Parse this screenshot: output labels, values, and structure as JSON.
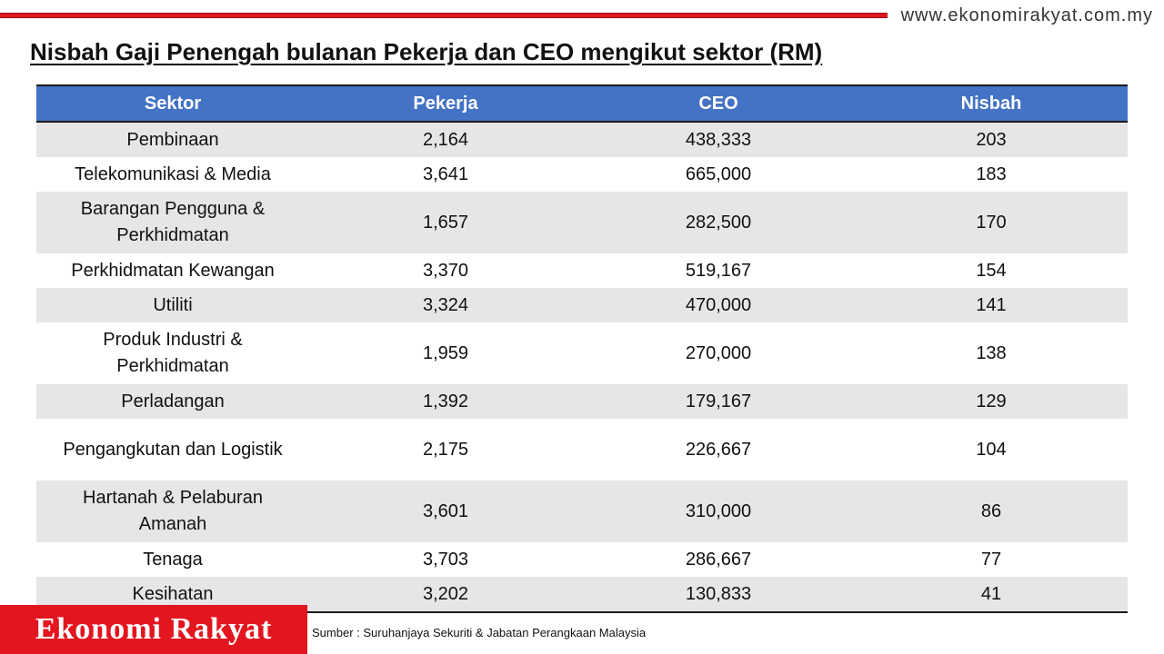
{
  "header": {
    "site_url": "www.ekonomirakyat.com.my",
    "accent_color": "#e3151f"
  },
  "title": "Nisbah Gaji Penengah bulanan Pekerja dan CEO mengikut sektor (RM)",
  "chart_data": {
    "type": "table",
    "title": "Nisbah Gaji Penengah bulanan Pekerja dan CEO mengikut sektor (RM)",
    "columns": [
      "Sektor",
      "Pekerja",
      "CEO",
      "Nisbah"
    ],
    "header_color": "#4472c4",
    "rows": [
      [
        "Pembinaan",
        "2,164",
        "438,333",
        "203"
      ],
      [
        "Telekomunikasi & Media",
        "3,641",
        "665,000",
        "183"
      ],
      [
        "Barangan Pengguna & Perkhidmatan",
        "1,657",
        "282,500",
        "170"
      ],
      [
        "Perkhidmatan Kewangan",
        "3,370",
        "519,167",
        "154"
      ],
      [
        "Utiliti",
        "3,324",
        "470,000",
        "141"
      ],
      [
        "Produk Industri & Perkhidmatan",
        "1,959",
        "270,000",
        "138"
      ],
      [
        "Perladangan",
        "1,392",
        "179,167",
        "129"
      ],
      [
        "Pengangkutan dan Logistik",
        "2,175",
        "226,667",
        "104"
      ],
      [
        "Hartanah & Pelaburan Amanah",
        "3,601",
        "310,000",
        "86"
      ],
      [
        "Tenaga",
        "3,703",
        "286,667",
        "77"
      ],
      [
        "Kesihatan",
        "3,202",
        "130,833",
        "41"
      ]
    ]
  },
  "footer": {
    "brand": "Ekonomi Rakyat",
    "source": "Sumber : Suruhanjaya Sekuriti & Jabatan Perangkaan Malaysia"
  }
}
